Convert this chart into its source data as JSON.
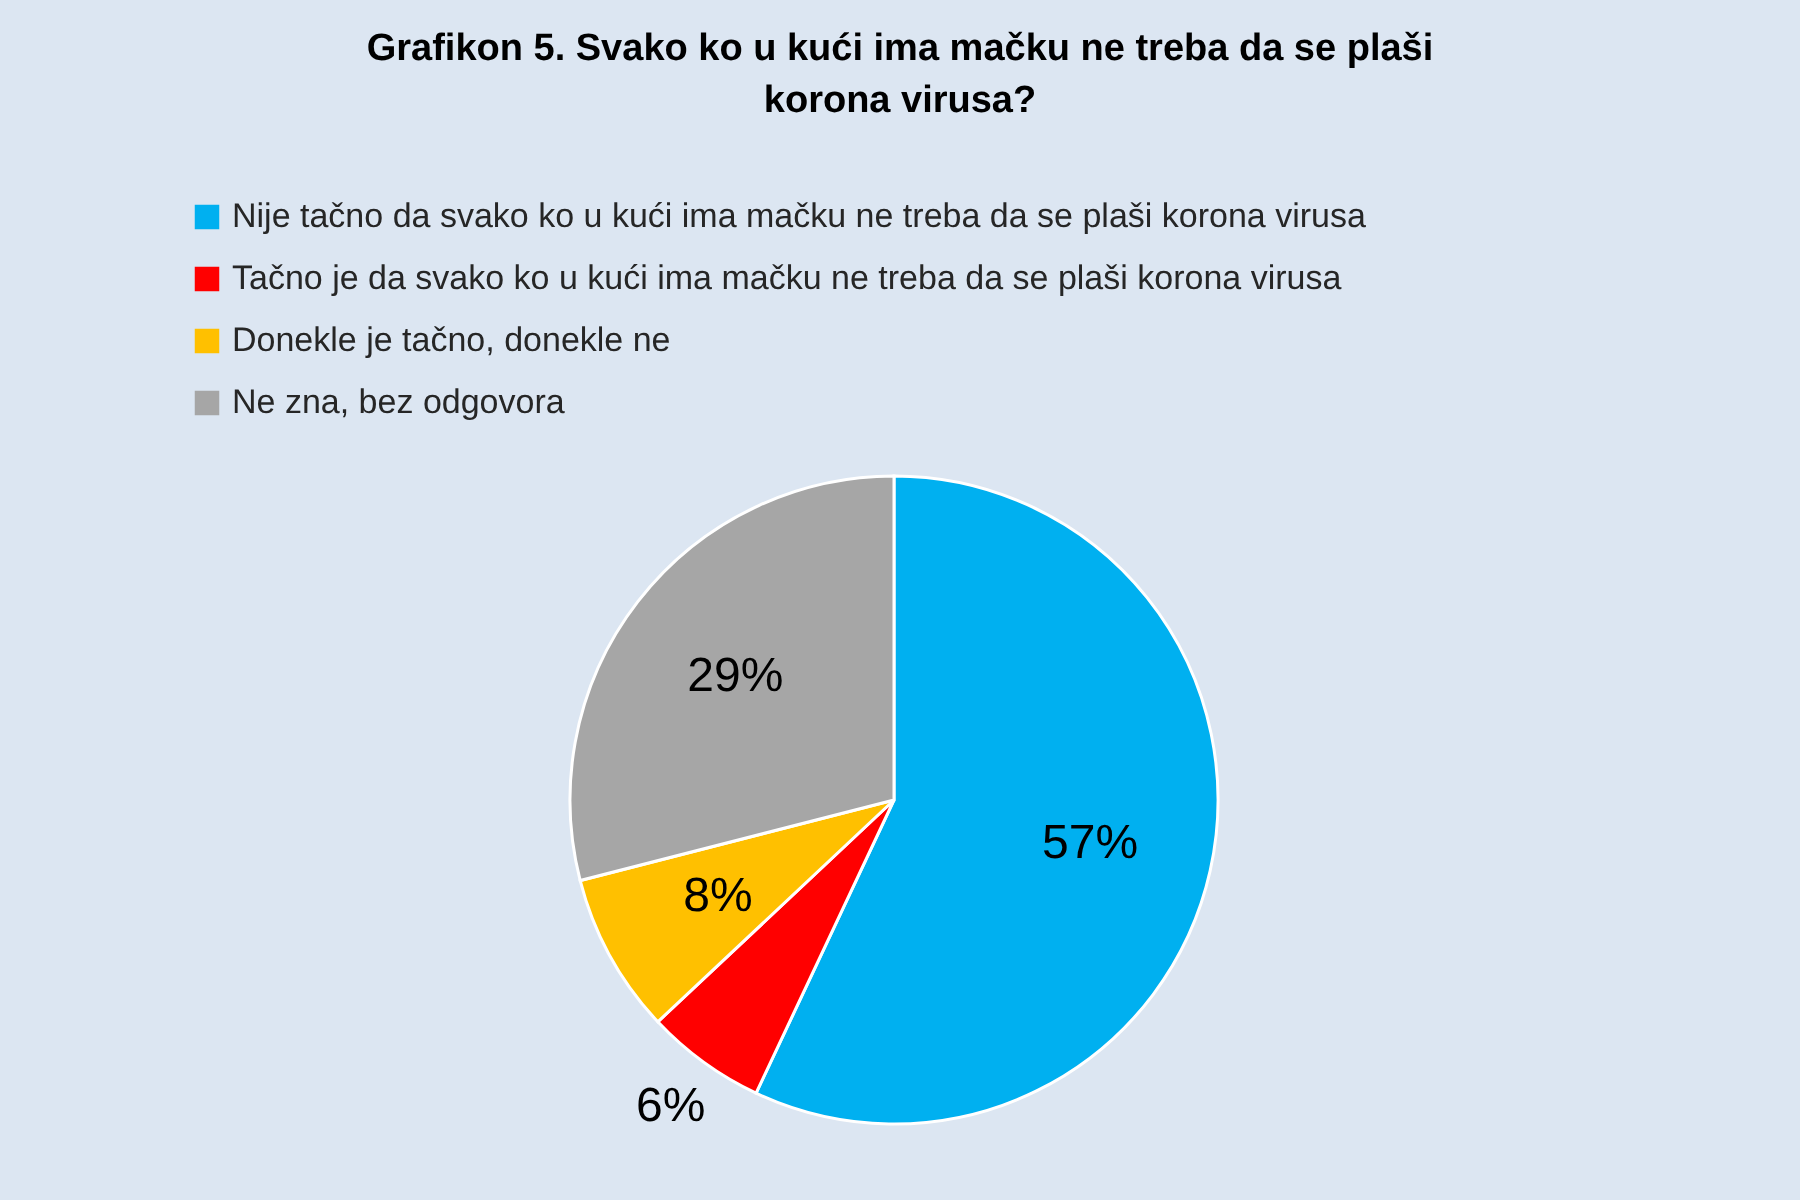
{
  "chart_data": {
    "type": "pie",
    "title": "Grafikon 5. Svako ko u kući ima mačku ne treba da se plaši korona virusa?",
    "categories": [
      "Nije tačno da svako ko u kući ima mačku ne treba da se plaši korona virusa",
      "Tačno je da svako ko u kući ima mačku ne treba da se plaši korona virusa",
      "Donekle je tačno, donekle ne",
      "Ne zna, bez odgovora"
    ],
    "values": [
      57,
      6,
      8,
      29
    ],
    "colors": [
      "#00b0f0",
      "#ff0000",
      "#ffc000",
      "#a6a6a6"
    ],
    "value_labels": [
      "57%",
      "6%",
      "8%",
      "29%"
    ],
    "legend": "top left"
  }
}
